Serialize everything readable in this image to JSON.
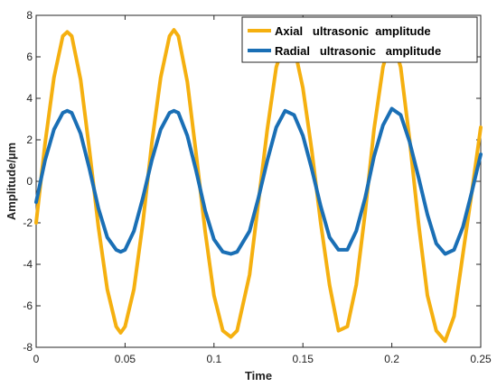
{
  "chart_data": {
    "type": "line",
    "xlabel": "Time",
    "ylabel": "Amplitude/µm",
    "xlim": [
      0,
      0.25
    ],
    "ylim": [
      -8,
      8
    ],
    "xticks": [
      0,
      0.05,
      0.1,
      0.15,
      0.2,
      0.25
    ],
    "xtick_labels": [
      "0",
      "0.05",
      "0.1",
      "0.15",
      "0.2",
      "0.25"
    ],
    "yticks": [
      -8,
      -6,
      -4,
      -2,
      0,
      2,
      4,
      6,
      8
    ],
    "ytick_labels": [
      "-8",
      "-6",
      "-4",
      "-2",
      "0",
      "2",
      "4",
      "6",
      "8"
    ],
    "grid": false,
    "legend_position": "top-right",
    "series": [
      {
        "name": "Axial   ultrasonic  amplitude",
        "color": "#F5B010",
        "x": [
          0,
          0.005,
          0.01,
          0.015,
          0.0175,
          0.02,
          0.025,
          0.03,
          0.035,
          0.04,
          0.045,
          0.0475,
          0.05,
          0.055,
          0.06,
          0.065,
          0.07,
          0.075,
          0.0775,
          0.08,
          0.085,
          0.09,
          0.095,
          0.1,
          0.105,
          0.1095,
          0.113,
          0.12,
          0.125,
          0.13,
          0.135,
          0.14,
          0.145,
          0.15,
          0.155,
          0.16,
          0.165,
          0.17,
          0.175,
          0.18,
          0.185,
          0.19,
          0.195,
          0.2,
          0.205,
          0.21,
          0.215,
          0.22,
          0.225,
          0.23,
          0.235,
          0.24,
          0.245,
          0.25
        ],
        "y": [
          -2.0,
          1.8,
          5.0,
          7.0,
          7.2,
          7.0,
          4.9,
          1.5,
          -2.2,
          -5.2,
          -7.0,
          -7.3,
          -7.0,
          -5.2,
          -2.0,
          1.8,
          5.0,
          7.0,
          7.3,
          7.0,
          4.8,
          1.3,
          -2.4,
          -5.5,
          -7.2,
          -7.5,
          -7.2,
          -4.5,
          -1.0,
          2.5,
          5.5,
          6.8,
          6.5,
          4.5,
          1.5,
          -2.0,
          -5.0,
          -7.2,
          -7.0,
          -5.0,
          -1.5,
          2.5,
          5.5,
          7.0,
          5.5,
          2.0,
          -2.0,
          -5.5,
          -7.2,
          -7.7,
          -6.5,
          -3.5,
          -0.5,
          2.6
        ]
      },
      {
        "name": "Radial   ultrasonic   amplitude",
        "color": "#1A6FB5",
        "x": [
          0,
          0.005,
          0.01,
          0.015,
          0.0175,
          0.02,
          0.025,
          0.03,
          0.035,
          0.04,
          0.045,
          0.0475,
          0.05,
          0.055,
          0.06,
          0.065,
          0.07,
          0.075,
          0.0775,
          0.08,
          0.085,
          0.09,
          0.095,
          0.1,
          0.105,
          0.1095,
          0.113,
          0.12,
          0.125,
          0.13,
          0.135,
          0.14,
          0.145,
          0.15,
          0.155,
          0.16,
          0.165,
          0.17,
          0.175,
          0.18,
          0.185,
          0.19,
          0.195,
          0.2,
          0.205,
          0.21,
          0.215,
          0.22,
          0.225,
          0.23,
          0.235,
          0.24,
          0.245,
          0.25
        ],
        "y": [
          -1.0,
          1.0,
          2.5,
          3.3,
          3.4,
          3.3,
          2.3,
          0.6,
          -1.3,
          -2.7,
          -3.3,
          -3.4,
          -3.3,
          -2.4,
          -0.8,
          1.0,
          2.5,
          3.3,
          3.4,
          3.3,
          2.2,
          0.5,
          -1.4,
          -2.8,
          -3.4,
          -3.5,
          -3.4,
          -2.4,
          -0.8,
          1.0,
          2.6,
          3.4,
          3.2,
          2.2,
          0.6,
          -1.2,
          -2.7,
          -3.3,
          -3.3,
          -2.4,
          -0.8,
          1.2,
          2.7,
          3.5,
          3.2,
          1.9,
          0.2,
          -1.6,
          -3.0,
          -3.5,
          -3.3,
          -2.2,
          -0.5,
          1.3
        ]
      }
    ]
  }
}
